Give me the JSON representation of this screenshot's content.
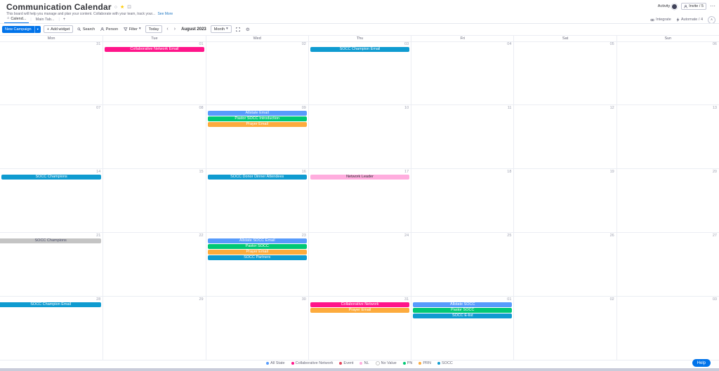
{
  "board": {
    "title": "Communication Calendar",
    "description": "This board will help you manage and plan your content. Collaborate with your team, track your...",
    "see_more": "See More"
  },
  "top_right": {
    "activity": "Activity",
    "invite": "Invite / 5"
  },
  "tabs": {
    "calendar_tab": "Calend...",
    "main_tab": "Main Tab...",
    "add_tab": "+",
    "integrate": "Integrate",
    "automate": "Automate / 4"
  },
  "toolbar": {
    "new_campaign": "New Campaign",
    "add_widget": "Add widget",
    "search": "Search",
    "person": "Person",
    "filter": "Filter",
    "today": "Today",
    "month_year": "August 2023",
    "view_mode": "Month"
  },
  "icons": {
    "info": "○",
    "favorite": "★",
    "broadcast": "⊡",
    "more": "⋯",
    "home": "⌂",
    "plus": "+",
    "chevron_down": "▾",
    "prev": "‹",
    "next": "›",
    "gear": "⚙",
    "collapse": "∧"
  },
  "calendar": {
    "day_headers": [
      "Mon",
      "Tue",
      "Wed",
      "Thu",
      "Fri",
      "Sat",
      "Sun"
    ],
    "weeks": [
      {
        "days": [
          {
            "date": "31",
            "events": []
          },
          {
            "date": "01",
            "events": [
              {
                "label": "Collaborative Network Email",
                "color": "#ff158a",
                "text_color": "#ffffff"
              }
            ]
          },
          {
            "date": "02",
            "events": []
          },
          {
            "date": "03",
            "events": [
              {
                "label": "SOCC Champion Email",
                "color": "#0f9bd0",
                "text_color": "#ffffff"
              }
            ]
          },
          {
            "date": "04",
            "events": []
          },
          {
            "date": "05",
            "events": []
          },
          {
            "date": "06",
            "events": []
          }
        ]
      },
      {
        "days": [
          {
            "date": "07",
            "events": []
          },
          {
            "date": "08",
            "events": []
          },
          {
            "date": "09",
            "events": [
              {
                "label": "Allstate Email",
                "color": "#579bfc",
                "text_color": "#ffffff"
              },
              {
                "label": "Pastor SOCC Introduction",
                "color": "#00c875",
                "text_color": "#ffffff"
              },
              {
                "label": "Prayer Email",
                "color": "#fdab3d",
                "text_color": "#ffffff"
              }
            ]
          },
          {
            "date": "10",
            "events": []
          },
          {
            "date": "11",
            "events": []
          },
          {
            "date": "12",
            "events": []
          },
          {
            "date": "13",
            "events": []
          }
        ]
      },
      {
        "days": [
          {
            "date": "14",
            "events": [
              {
                "label": "SOCC Champions",
                "color": "#0f9bd0",
                "text_color": "#ffffff"
              }
            ]
          },
          {
            "date": "15",
            "events": []
          },
          {
            "date": "16",
            "events": [
              {
                "label": "SOCC Donor Dinner Attendees",
                "color": "#0f9bd0",
                "text_color": "#ffffff"
              }
            ]
          },
          {
            "date": "17",
            "events": [
              {
                "label": "Network Leader",
                "color": "#ffadde",
                "text_color": "#323338"
              }
            ]
          },
          {
            "date": "18",
            "events": []
          },
          {
            "date": "19",
            "events": []
          },
          {
            "date": "20",
            "events": []
          }
        ]
      },
      {
        "days": [
          {
            "date": "21",
            "events": [
              {
                "label": "SOCC Champions",
                "color": "#c4c4c4",
                "text_color": "#50546e",
                "continued": true
              }
            ]
          },
          {
            "date": "22",
            "events": []
          },
          {
            "date": "23",
            "events": [
              {
                "label": "Allstate SOCC Email",
                "color": "#579bfc",
                "text_color": "#ffffff"
              },
              {
                "label": "Pastor SOCC",
                "color": "#00c875",
                "text_color": "#ffffff"
              },
              {
                "label": "Prayer Email",
                "color": "#fdab3d",
                "text_color": "#ffffff"
              },
              {
                "label": "SOCC Partners",
                "color": "#0f9bd0",
                "text_color": "#ffffff"
              }
            ]
          },
          {
            "date": "24",
            "events": []
          },
          {
            "date": "25",
            "events": []
          },
          {
            "date": "26",
            "events": []
          },
          {
            "date": "27",
            "events": []
          }
        ]
      },
      {
        "days": [
          {
            "date": "28",
            "events": [
              {
                "label": "SOCC Champion Email",
                "color": "#0f9bd0",
                "text_color": "#ffffff",
                "continued": true
              }
            ]
          },
          {
            "date": "29",
            "events": []
          },
          {
            "date": "30",
            "events": []
          },
          {
            "date": "31",
            "events": [
              {
                "label": "Collaborative Network",
                "color": "#ff158a",
                "text_color": "#ffffff"
              },
              {
                "label": "Prayer Email",
                "color": "#fdab3d",
                "text_color": "#ffffff"
              }
            ]
          },
          {
            "date": "01",
            "events": [
              {
                "label": "Allstate SOCC",
                "color": "#579bfc",
                "text_color": "#ffffff"
              },
              {
                "label": "Pastor SOCC",
                "color": "#00c875",
                "text_color": "#ffffff"
              },
              {
                "label": "SOCC E-list",
                "color": "#0f9bd0",
                "text_color": "#ffffff"
              }
            ]
          },
          {
            "date": "02",
            "events": []
          },
          {
            "date": "03",
            "events": []
          }
        ]
      }
    ]
  },
  "legend": {
    "items": [
      {
        "label": "All State",
        "color": "#579bfc"
      },
      {
        "label": "Collaborative Network",
        "color": "#ff158a"
      },
      {
        "label": "Event",
        "color": "#e2445c"
      },
      {
        "label": "NL",
        "color": "#ffadde"
      },
      {
        "label": "No Value",
        "color": "#ffffff",
        "outline": "#c4c4c4"
      },
      {
        "label": "PN",
        "color": "#00c875"
      },
      {
        "label": "PRN",
        "color": "#fdab3d"
      },
      {
        "label": "SOCC",
        "color": "#0f9bd0"
      }
    ]
  },
  "help": {
    "label": "Help"
  },
  "colors": {
    "accent": "#0073ea",
    "grid_line": "#ebedf3"
  }
}
